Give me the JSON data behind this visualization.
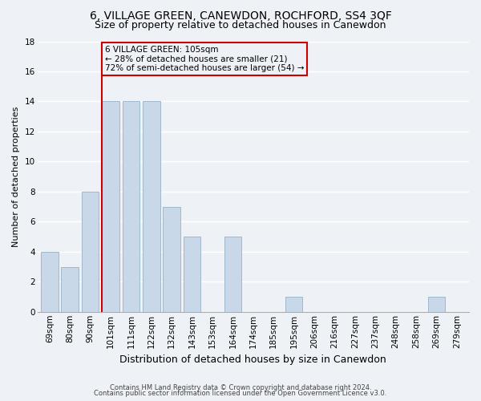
{
  "title": "6, VILLAGE GREEN, CANEWDON, ROCHFORD, SS4 3QF",
  "subtitle": "Size of property relative to detached houses in Canewdon",
  "xlabel": "Distribution of detached houses by size in Canewdon",
  "ylabel": "Number of detached properties",
  "categories": [
    "69sqm",
    "80sqm",
    "90sqm",
    "101sqm",
    "111sqm",
    "122sqm",
    "132sqm",
    "143sqm",
    "153sqm",
    "164sqm",
    "174sqm",
    "185sqm",
    "195sqm",
    "206sqm",
    "216sqm",
    "227sqm",
    "237sqm",
    "248sqm",
    "258sqm",
    "269sqm",
    "279sqm"
  ],
  "values": [
    4,
    3,
    8,
    14,
    14,
    14,
    7,
    5,
    0,
    5,
    0,
    0,
    1,
    0,
    0,
    0,
    0,
    0,
    0,
    1,
    0
  ],
  "bar_color": "#c8d8e8",
  "bar_edge_color": "#a0b8cc",
  "property_line_color": "#cc0000",
  "annotation_text": "6 VILLAGE GREEN: 105sqm\n← 28% of detached houses are smaller (21)\n72% of semi-detached houses are larger (54) →",
  "annotation_box_color": "#cc0000",
  "ylim": [
    0,
    18
  ],
  "yticks": [
    0,
    2,
    4,
    6,
    8,
    10,
    12,
    14,
    16,
    18
  ],
  "footnote1": "Contains HM Land Registry data © Crown copyright and database right 2024.",
  "footnote2": "Contains public sector information licensed under the Open Government Licence v3.0.",
  "bg_color": "#eef2f7",
  "grid_color": "#ffffff",
  "title_fontsize": 10,
  "subtitle_fontsize": 9,
  "xlabel_fontsize": 9,
  "ylabel_fontsize": 8,
  "tick_fontsize": 7.5,
  "annotation_fontsize": 7.5,
  "footnote_fontsize": 6
}
